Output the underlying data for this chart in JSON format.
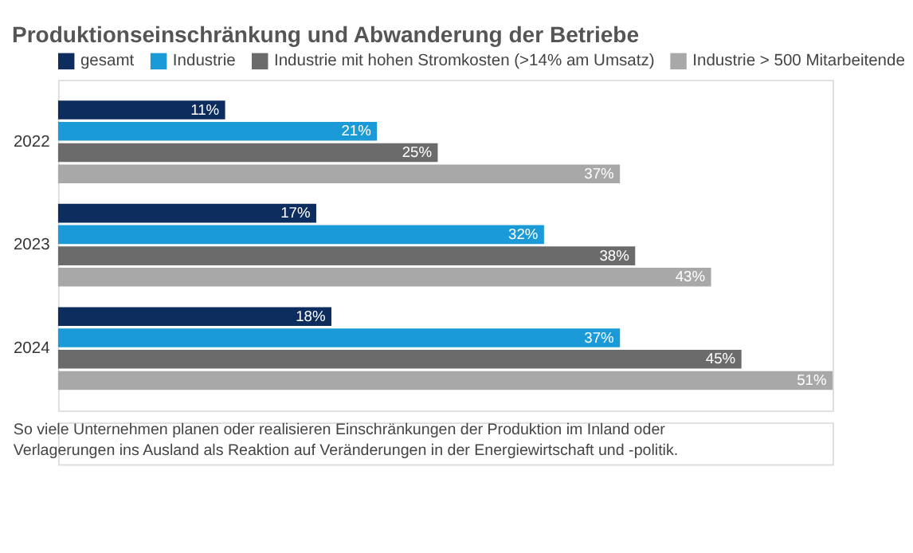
{
  "chart_data": {
    "type": "bar",
    "orientation": "horizontal",
    "title": "Produktionseinschränkung und Abwanderung der Betriebe",
    "categories": [
      "2022",
      "2023",
      "2024"
    ],
    "series": [
      {
        "name": "gesamt",
        "color": "#0d2d5e",
        "values": [
          11,
          17,
          18
        ],
        "value_labels": [
          "11%",
          "17%",
          "18%"
        ]
      },
      {
        "name": "Industrie",
        "color": "#1a9ad6",
        "values": [
          21,
          32,
          37
        ],
        "value_labels": [
          "21%",
          "32%",
          "37%"
        ]
      },
      {
        "name": "Industrie mit hohen Stromkosten (>14% am Umsatz)",
        "color": "#6b6b6b",
        "values": [
          25,
          38,
          45
        ],
        "value_labels": [
          "25%",
          "38%",
          "45%"
        ]
      },
      {
        "name": "Industrie > 500 Mitarbeitende",
        "color": "#a8a8a8",
        "values": [
          37,
          43,
          51
        ],
        "value_labels": [
          "37%",
          "43%",
          "51%"
        ]
      }
    ],
    "legend": "top left",
    "annotations": [
      "So viele Unternehmen planen oder realisieren Einschränkungen der Produktion im Inland oder Verlagerungen ins Ausland als Reaktion auf Veränderungen in der Energiewirtschaft und -politik."
    ]
  }
}
